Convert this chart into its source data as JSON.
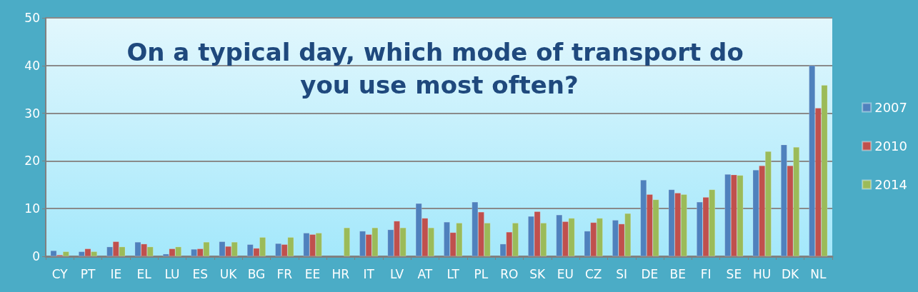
{
  "chart_data": {
    "type": "bar",
    "title": "On a typical day, which mode of transport do you use most often?",
    "categories": [
      "CY",
      "PT",
      "IE",
      "EL",
      "LU",
      "ES",
      "UK",
      "BG",
      "FR",
      "EE",
      "HR",
      "IT",
      "LV",
      "AT",
      "LT",
      "PL",
      "RO",
      "SK",
      "EU",
      "CZ",
      "SI",
      "DE",
      "BE",
      "FI",
      "SE",
      "HU",
      "DK",
      "NL"
    ],
    "series": [
      {
        "name": "2007",
        "color": "#4f81bd",
        "values": [
          1.2,
          1.0,
          2.0,
          3.0,
          0.5,
          1.5,
          3.1,
          2.5,
          2.7,
          4.9,
          null,
          5.3,
          5.6,
          11.1,
          7.2,
          11.4,
          2.6,
          8.4,
          8.7,
          5.3,
          7.6,
          16.0,
          14.0,
          11.4,
          17.2,
          18.1,
          23.4,
          40.0
        ]
      },
      {
        "name": "2010",
        "color": "#c0504d",
        "values": [
          0.3,
          1.6,
          3.1,
          2.6,
          1.6,
          1.6,
          2.1,
          1.7,
          2.5,
          4.6,
          null,
          4.6,
          7.4,
          8.0,
          5.0,
          9.3,
          5.1,
          9.4,
          7.3,
          7.1,
          6.8,
          13.0,
          13.3,
          12.4,
          17.1,
          19.0,
          19.0,
          31.1
        ]
      },
      {
        "name": "2014",
        "color": "#9bbb59",
        "values": [
          1.0,
          1.0,
          2.0,
          2.0,
          2.0,
          3.0,
          3.0,
          4.0,
          4.0,
          4.9,
          6.0,
          6.0,
          6.0,
          6.0,
          7.0,
          7.0,
          7.0,
          7.0,
          8.0,
          8.0,
          9.0,
          11.9,
          13.0,
          14.0,
          17.0,
          22.0,
          22.9,
          35.9
        ]
      }
    ],
    "ylim": [
      0,
      50
    ],
    "yticks": [
      0,
      10,
      20,
      30,
      40,
      50
    ],
    "grid": "y",
    "legend": "right"
  }
}
